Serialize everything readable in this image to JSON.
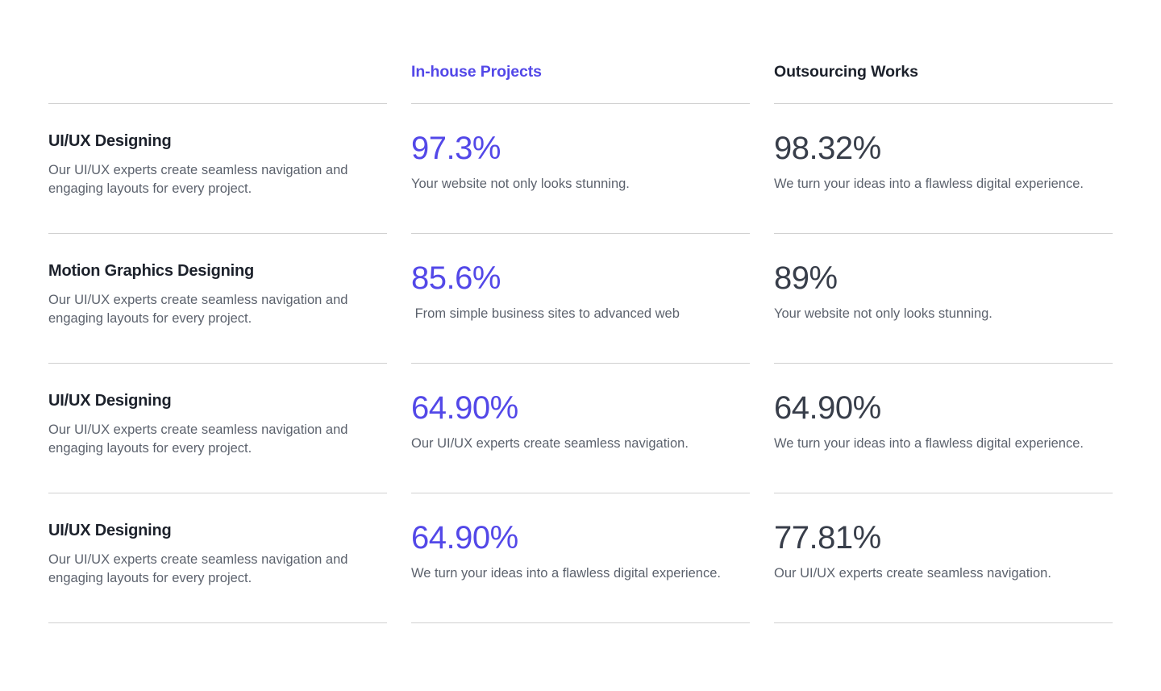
{
  "headers": {
    "inhouse": "In-house Projects",
    "outsourcing": "Outsourcing Works"
  },
  "rows": [
    {
      "title": "UI/UX Designing",
      "description": "Our UI/UX experts create seamless navigation and engaging layouts for every project.",
      "inhouse": {
        "value": "97.3%",
        "caption": "Your website not only looks stunning."
      },
      "outsourcing": {
        "value": "98.32%",
        "caption": "We turn your ideas into a flawless digital experience."
      }
    },
    {
      "title": "Motion Graphics Designing",
      "description": "Our UI/UX experts create seamless navigation and engaging layouts for every project.",
      "inhouse": {
        "value": "85.6%",
        "caption": " From simple business sites to advanced web"
      },
      "outsourcing": {
        "value": "89%",
        "caption": "Your website not only looks stunning."
      }
    },
    {
      "title": "UI/UX Designing",
      "description": "Our UI/UX experts create seamless navigation and engaging layouts for every project.",
      "inhouse": {
        "value": "64.90%",
        "caption": "Our UI/UX experts create seamless navigation."
      },
      "outsourcing": {
        "value": "64.90%",
        "caption": "We turn your ideas into a flawless digital experience."
      }
    },
    {
      "title": "UI/UX Designing",
      "description": "Our UI/UX experts create seamless navigation and engaging layouts for every project.",
      "inhouse": {
        "value": "64.90%",
        "caption": "We turn your ideas into a flawless digital experience."
      },
      "outsourcing": {
        "value": "77.81%",
        "caption": "Our UI/UX experts create seamless navigation."
      }
    }
  ],
  "colors": {
    "accent": "#5348e8",
    "heading": "#1c212b",
    "value_dark": "#383e4a",
    "muted_text": "#5c626d",
    "divider": "#d0d0d0",
    "background": "#ffffff"
  }
}
